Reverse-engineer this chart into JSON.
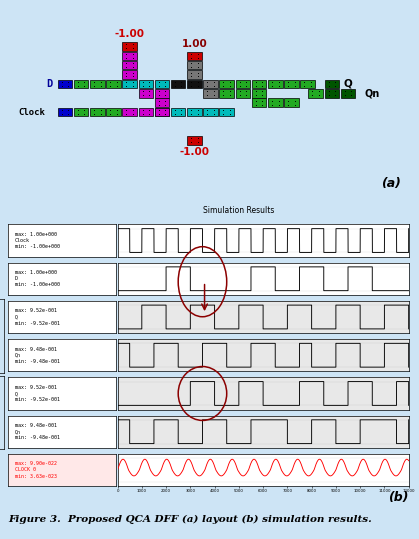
{
  "fig_caption": "Figure 3.  Proposed QCA DFF (a) layout (b) simulation results.",
  "sim_title": "Simulation Results",
  "background_color": "#cde4f5",
  "xmax": 12000,
  "tick_vals": [
    0,
    1000,
    2000,
    3000,
    4000,
    5000,
    6000,
    7000,
    8000,
    9000,
    10000,
    11000,
    12000
  ],
  "signals": [
    {
      "label": "max: 1.00e+000\nClock\nmin: -1.00e+000",
      "color": "black",
      "gray_bg": false
    },
    {
      "label": "max: 1.00e+000\nD\nmin: -1.00e+000",
      "color": "black",
      "gray_bg": false
    },
    {
      "label": "max: 9.52e-001\nQ\nmin: -9.52e-001",
      "color": "black",
      "gray_bg": true
    },
    {
      "label": "max: 9.48e-001\nQn\nmin: -9.48e-001",
      "color": "black",
      "gray_bg": true
    },
    {
      "label": "max: 9.52e-001\nQ\nmin: -9.52e-001",
      "color": "black",
      "gray_bg": true
    },
    {
      "label": "max: 9.48e-001\nQn\nmin: -9.48e-001",
      "color": "black",
      "gray_bg": true
    },
    {
      "label": "max: 9.90e-022\nCLOCK 0\nmin: 3.63e-023",
      "color": "red",
      "gray_bg": false
    }
  ],
  "colors": {
    "green": "#22aa22",
    "cyan": "#00bbbb",
    "magenta": "#cc00cc",
    "blue": "#0000cc",
    "red": "#cc0000",
    "black": "#111111",
    "gray": "#777777",
    "dark_green": "#005500",
    "white": "#ffffff"
  }
}
